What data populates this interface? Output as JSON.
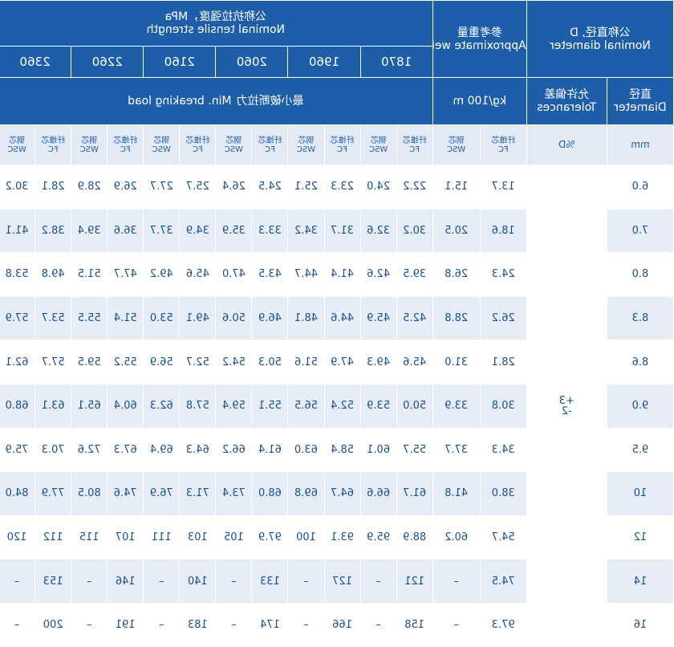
{
  "header": {
    "nominal_diameter": {
      "zh": "公称直径, D",
      "en": "Nominal diameter"
    },
    "approx_weight": {
      "zh": "参考重量",
      "en": "Approximate weight"
    },
    "tensile_strength": {
      "zh": "公称抗拉强度，MPa",
      "en": "Nominal tensile strength"
    },
    "grades": [
      "1870",
      "1960",
      "2060",
      "2160",
      "2260",
      "2360"
    ],
    "weight_unit": "kg/100 m",
    "min_breaking_load": {
      "zh": "最小破断拉力",
      "en": "Min. breaking load"
    },
    "diameter": {
      "zh": "直径",
      "en": "Diameter"
    },
    "tolerances": {
      "zh": "允许偏差",
      "en": "Tolerances"
    },
    "diameter_unit": "mm",
    "tolerance_unit": "%D",
    "core_types": [
      {
        "zh": "纤维芯",
        "en": "FC"
      },
      {
        "zh": "钢芯",
        "en": "WSC"
      }
    ]
  },
  "tolerance_value": [
    "+3",
    "-2"
  ],
  "rows": [
    {
      "diameter": "6.0",
      "values": [
        "13.7",
        "15.1",
        "22.2",
        "24.0",
        "23.3",
        "25.1",
        "24.5",
        "26.4",
        "25.7",
        "27.7",
        "26.9",
        "28.9",
        "28.1",
        "30.2"
      ]
    },
    {
      "diameter": "7.0",
      "values": [
        "18.6",
        "20.5",
        "30.2",
        "32.6",
        "31.7",
        "34.2",
        "33.3",
        "35.9",
        "34.9",
        "37.7",
        "36.6",
        "39.4",
        "38.2",
        "41.1"
      ]
    },
    {
      "diameter": "8.0",
      "values": [
        "24.3",
        "26.8",
        "39.5",
        "42.6",
        "41.4",
        "44.7",
        "43.5",
        "47.0",
        "45.6",
        "49.2",
        "47.7",
        "51.5",
        "49.8",
        "53.8"
      ]
    },
    {
      "diameter": "8.3",
      "values": [
        "26.2",
        "28.8",
        "42.5",
        "45.9",
        "44.6",
        "48.1",
        "46.9",
        "50.6",
        "49.1",
        "53.0",
        "51.4",
        "55.5",
        "53.7",
        "57.9"
      ]
    },
    {
      "diameter": "8.6",
      "values": [
        "28.1",
        "31.0",
        "45.6",
        "49.3",
        "47.9",
        "51.6",
        "50.3",
        "54.2",
        "52.7",
        "56.9",
        "55.2",
        "59.5",
        "57.7",
        "62.1"
      ]
    },
    {
      "diameter": "9.0",
      "values": [
        "30.8",
        "33.9",
        "50.0",
        "53.9",
        "52.4",
        "56.5",
        "55.1",
        "59.4",
        "57.8",
        "62.3",
        "60.4",
        "65.1",
        "63.1",
        "68.0"
      ]
    },
    {
      "diameter": "9.5",
      "values": [
        "34.3",
        "37.7",
        "55.7",
        "60.1",
        "58.4",
        "63.0",
        "61.4",
        "66.2",
        "64.3",
        "69.4",
        "67.3",
        "72.6",
        "70.3",
        "75.9"
      ]
    },
    {
      "diameter": "10",
      "values": [
        "38.0",
        "41.8",
        "61.7",
        "66.6",
        "64.7",
        "69.8",
        "68.0",
        "73.4",
        "71.3",
        "76.9",
        "74.6",
        "80.5",
        "77.9",
        "84.0"
      ]
    },
    {
      "diameter": "12",
      "values": [
        "54.7",
        "60.2",
        "88.9",
        "95.9",
        "93.1",
        "100",
        "97.9",
        "105",
        "103",
        "111",
        "107",
        "115",
        "112",
        "120"
      ]
    },
    {
      "diameter": "14",
      "values": [
        "74.5",
        "–",
        "121",
        "–",
        "127",
        "–",
        "133",
        "–",
        "140",
        "–",
        "146",
        "–",
        "153",
        "–"
      ]
    },
    {
      "diameter": "16",
      "values": [
        "97.3",
        "–",
        "158",
        "–",
        "166",
        "–",
        "174",
        "–",
        "183",
        "–",
        "191",
        "–",
        "200",
        "–"
      ]
    }
  ]
}
